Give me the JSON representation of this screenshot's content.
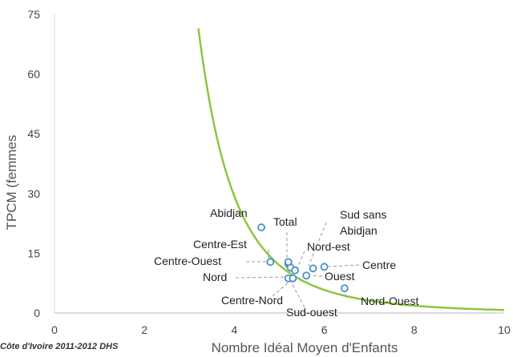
{
  "chart_data": {
    "type": "scatter",
    "title": "",
    "xlabel": "Nombre Idéal Moyen d'Enfants",
    "ylabel": "TPCM (femmes",
    "xlim": [
      0,
      10
    ],
    "ylim": [
      0,
      75
    ],
    "x_ticks": [
      0,
      2,
      4,
      6,
      8,
      10
    ],
    "y_ticks": [
      0,
      15,
      30,
      45,
      60,
      75
    ],
    "grid": false,
    "points": [
      {
        "label": "Abidjan",
        "x": 4.6,
        "y": 21.5
      },
      {
        "label": "Total",
        "x": 5.2,
        "y": 12.3
      },
      {
        "label": "Sud sans Abidjan",
        "x": 5.75,
        "y": 11.2
      },
      {
        "label": "Centre-Est",
        "x": 5.25,
        "y": 11.4
      },
      {
        "label": "Nord-est",
        "x": 5.35,
        "y": 10.7
      },
      {
        "label": "Centre-Ouest",
        "x": 4.8,
        "y": 12.8
      },
      {
        "label": "Centre",
        "x": 6.0,
        "y": 11.6
      },
      {
        "label": "Ouest",
        "x": 5.6,
        "y": 9.4
      },
      {
        "label": "Nord",
        "x": 5.2,
        "y": 8.7
      },
      {
        "label": "Centre-Nord",
        "x": 5.3,
        "y": 8.7
      },
      {
        "label": "Sud-ouest",
        "x": 5.2,
        "y": 12.8
      },
      {
        "label": "Nord-Ouest",
        "x": 6.45,
        "y": 6.2
      }
    ],
    "curve": {
      "description_y_equals_k_over_x4": true,
      "k": 7500,
      "x_from": 3.2,
      "x_to": 10,
      "color": "#8dc63f"
    },
    "point_color": "#4a90c8",
    "source_text": "Côte d'Ivoire 2011-2012 DHS"
  }
}
